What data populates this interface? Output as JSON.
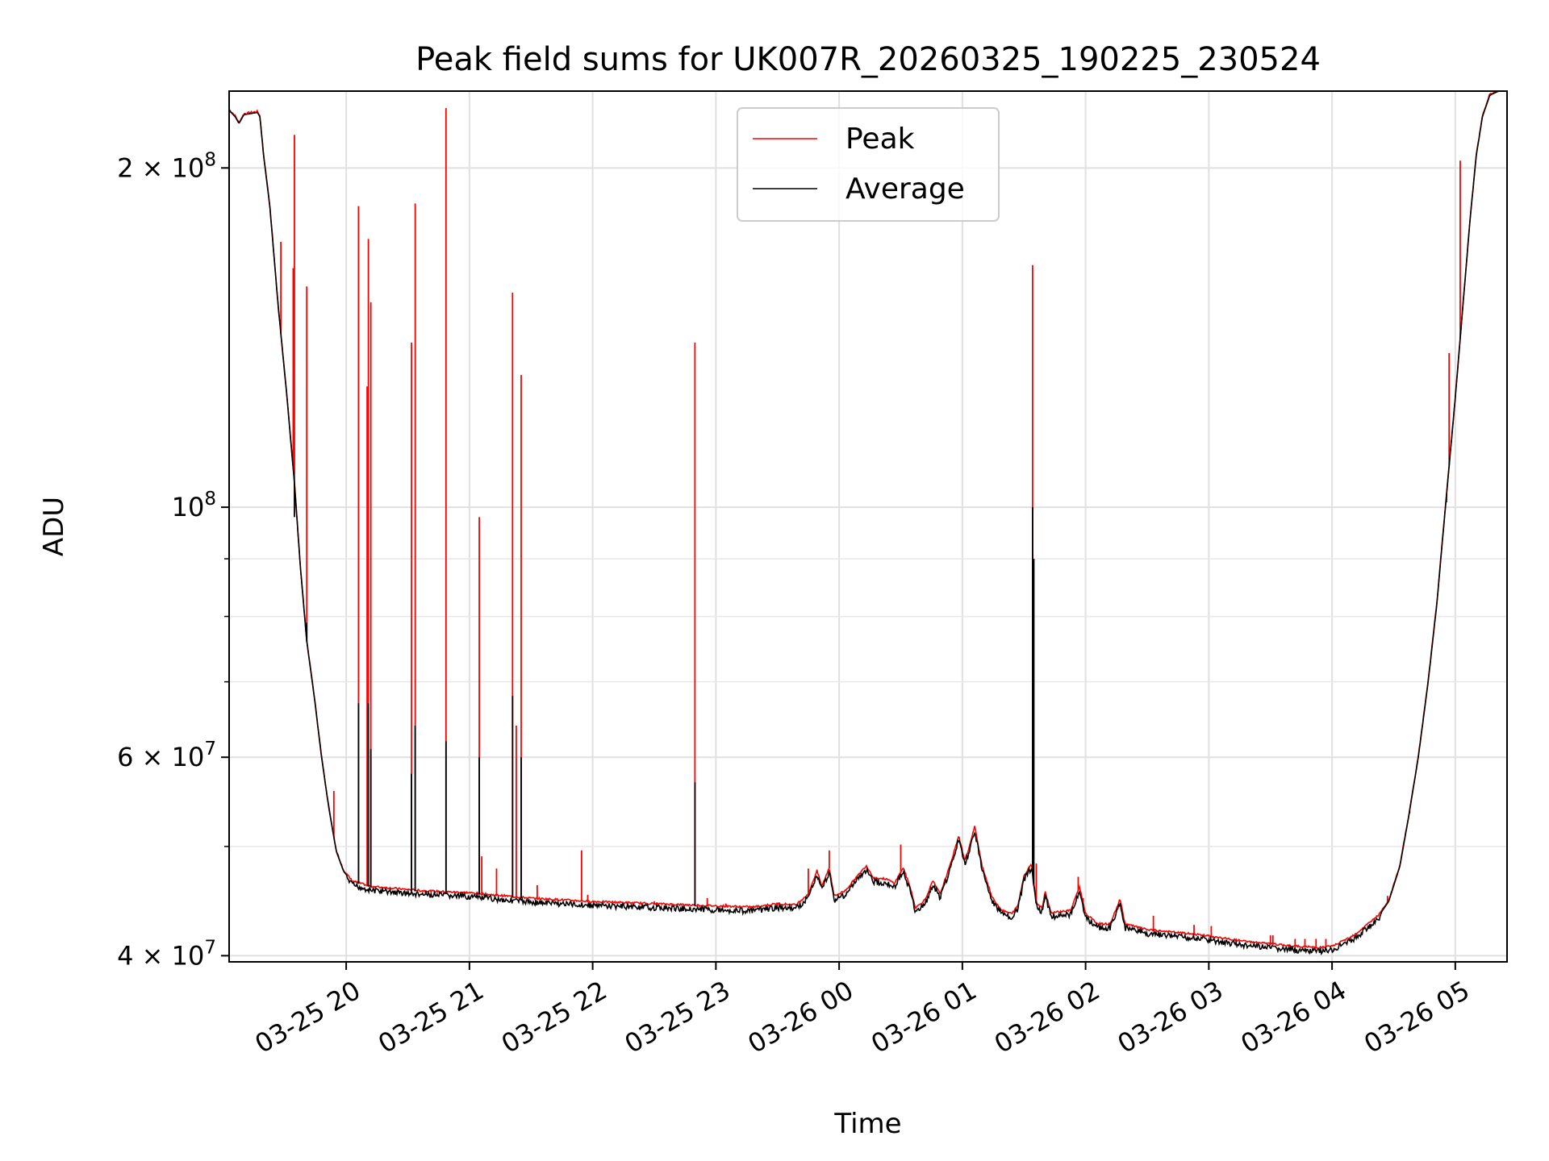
{
  "chart_data": {
    "type": "line",
    "title": "Peak field sums for UK007R_20260325_190225_230524",
    "xlabel": "Time",
    "ylabel": "ADU",
    "yscale": "log",
    "xlim_hours": [
      -0.95,
      9.42
    ],
    "ylim": [
      39500000,
      234000000
    ],
    "grid": true,
    "legend_position": "top-center",
    "x_ticks": [
      {
        "h": 0,
        "label": "03-25 20"
      },
      {
        "h": 1,
        "label": "03-25 21"
      },
      {
        "h": 2,
        "label": "03-25 22"
      },
      {
        "h": 3,
        "label": "03-25 23"
      },
      {
        "h": 4,
        "label": "03-26 00"
      },
      {
        "h": 5,
        "label": "03-26 01"
      },
      {
        "h": 6,
        "label": "03-26 02"
      },
      {
        "h": 7,
        "label": "03-26 03"
      },
      {
        "h": 8,
        "label": "03-26 04"
      },
      {
        "h": 9,
        "label": "03-26 05"
      }
    ],
    "y_ticks": [
      {
        "v": 40000000,
        "base": "4 × 10",
        "exp": "7",
        "show_coef": true
      },
      {
        "v": 60000000,
        "base": "6 × 10",
        "exp": "7",
        "show_coef": true
      },
      {
        "v": 100000000,
        "base": "10",
        "exp": "8",
        "show_coef": false
      },
      {
        "v": 200000000,
        "base": "2 × 10",
        "exp": "8",
        "show_coef": true
      }
    ],
    "y_minor_ticks": [
      50000000,
      70000000,
      80000000,
      90000000
    ],
    "series": [
      {
        "name": "Peak",
        "color": "#ff0000"
      },
      {
        "name": "Average",
        "color": "#000000"
      }
    ],
    "average_curve": [
      [
        -0.95,
        225000000
      ],
      [
        -0.9,
        222000000
      ],
      [
        -0.87,
        219000000
      ],
      [
        -0.83,
        223000000
      ],
      [
        -0.72,
        224000000
      ],
      [
        -0.7,
        222000000
      ],
      [
        -0.67,
        205000000
      ],
      [
        -0.62,
        185000000
      ],
      [
        -0.55,
        150000000
      ],
      [
        -0.48,
        125000000
      ],
      [
        -0.42,
        105000000
      ],
      [
        -0.37,
        88000000
      ],
      [
        -0.32,
        76000000
      ],
      [
        -0.26,
        68000000
      ],
      [
        -0.2,
        60000000
      ],
      [
        -0.14,
        54000000
      ],
      [
        -0.08,
        49500000
      ],
      [
        -0.02,
        47500000
      ],
      [
        0.05,
        46500000
      ],
      [
        0.2,
        46000000
      ],
      [
        0.4,
        45800000
      ],
      [
        0.6,
        45600000
      ],
      [
        1.0,
        45400000
      ],
      [
        1.5,
        44900000
      ],
      [
        2.0,
        44600000
      ],
      [
        2.5,
        44400000
      ],
      [
        3.0,
        44200000
      ],
      [
        3.3,
        44100000
      ],
      [
        3.5,
        44400000
      ],
      [
        3.65,
        44300000
      ],
      [
        3.75,
        45300000
      ],
      [
        3.82,
        47500000
      ],
      [
        3.86,
        46000000
      ],
      [
        3.92,
        47800000
      ],
      [
        3.96,
        45100000
      ],
      [
        4.05,
        45600000
      ],
      [
        4.15,
        47000000
      ],
      [
        4.22,
        48000000
      ],
      [
        4.28,
        46800000
      ],
      [
        4.38,
        46700000
      ],
      [
        4.45,
        46300000
      ],
      [
        4.52,
        47800000
      ],
      [
        4.58,
        45800000
      ],
      [
        4.62,
        44000000
      ],
      [
        4.7,
        44800000
      ],
      [
        4.76,
        46500000
      ],
      [
        4.82,
        45300000
      ],
      [
        4.9,
        48000000
      ],
      [
        4.97,
        51000000
      ],
      [
        5.02,
        48500000
      ],
      [
        5.06,
        50000000
      ],
      [
        5.1,
        52000000
      ],
      [
        5.16,
        48000000
      ],
      [
        5.24,
        45000000
      ],
      [
        5.32,
        43800000
      ],
      [
        5.4,
        43500000
      ],
      [
        5.45,
        44200000
      ],
      [
        5.5,
        47000000
      ],
      [
        5.56,
        48200000
      ],
      [
        5.6,
        44500000
      ],
      [
        5.65,
        44000000
      ],
      [
        5.67,
        45600000
      ],
      [
        5.72,
        43600000
      ],
      [
        5.8,
        43700000
      ],
      [
        5.88,
        43800000
      ],
      [
        5.95,
        46000000
      ],
      [
        6.0,
        43500000
      ],
      [
        6.1,
        42600000
      ],
      [
        6.2,
        42600000
      ],
      [
        6.28,
        44800000
      ],
      [
        6.32,
        42600000
      ],
      [
        6.5,
        42100000
      ],
      [
        6.7,
        41900000
      ],
      [
        6.9,
        41700000
      ],
      [
        7.1,
        41400000
      ],
      [
        7.3,
        41100000
      ],
      [
        7.5,
        40900000
      ],
      [
        7.7,
        40700000
      ],
      [
        7.9,
        40600000
      ],
      [
        8.0,
        40700000
      ],
      [
        8.1,
        41200000
      ],
      [
        8.2,
        41800000
      ],
      [
        8.3,
        42700000
      ],
      [
        8.38,
        43400000
      ],
      [
        8.46,
        44700000
      ],
      [
        8.55,
        48000000
      ],
      [
        8.62,
        53000000
      ],
      [
        8.7,
        60000000
      ],
      [
        8.78,
        70000000
      ],
      [
        8.85,
        82000000
      ],
      [
        8.92,
        100000000
      ],
      [
        9.0,
        125000000
      ],
      [
        9.06,
        150000000
      ],
      [
        9.12,
        180000000
      ],
      [
        9.17,
        205000000
      ],
      [
        9.22,
        222000000
      ],
      [
        9.28,
        232000000
      ],
      [
        9.35,
        234000000
      ],
      [
        9.42,
        234000000
      ]
    ],
    "peak_spikes": [
      {
        "h": -0.53,
        "v": 172000000
      },
      {
        "h": -0.42,
        "v": 214000000
      },
      {
        "h": -0.43,
        "v": 163000000
      },
      {
        "h": -0.32,
        "v": 157000000
      },
      {
        "h": -0.1,
        "v": 56000000
      },
      {
        "h": 0.1,
        "v": 185000000
      },
      {
        "h": 0.18,
        "v": 173000000
      },
      {
        "h": 0.2,
        "v": 152000000
      },
      {
        "h": 0.17,
        "v": 128000000
      },
      {
        "h": 0.53,
        "v": 140000000
      },
      {
        "h": 0.56,
        "v": 186000000
      },
      {
        "h": 0.81,
        "v": 226000000
      },
      {
        "h": 1.08,
        "v": 98000000
      },
      {
        "h": 1.1,
        "v": 49000000
      },
      {
        "h": 1.22,
        "v": 47800000
      },
      {
        "h": 1.35,
        "v": 155000000
      },
      {
        "h": 1.38,
        "v": 64000000
      },
      {
        "h": 1.42,
        "v": 131000000
      },
      {
        "h": 1.55,
        "v": 46200000
      },
      {
        "h": 1.91,
        "v": 49600000
      },
      {
        "h": 1.96,
        "v": 45300000
      },
      {
        "h": 2.5,
        "v": 44700000
      },
      {
        "h": 2.83,
        "v": 140000000
      },
      {
        "h": 2.93,
        "v": 45000000
      },
      {
        "h": 3.08,
        "v": 44500000
      },
      {
        "h": 3.75,
        "v": 47800000
      },
      {
        "h": 3.92,
        "v": 49600000
      },
      {
        "h": 4.5,
        "v": 50200000
      },
      {
        "h": 5.57,
        "v": 164000000
      },
      {
        "h": 5.6,
        "v": 48300000
      },
      {
        "h": 5.94,
        "v": 47000000
      },
      {
        "h": 5.98,
        "v": 45000000
      },
      {
        "h": 6.55,
        "v": 43400000
      },
      {
        "h": 6.88,
        "v": 42600000
      },
      {
        "h": 7.02,
        "v": 42500000
      },
      {
        "h": 7.5,
        "v": 41700000
      },
      {
        "h": 7.52,
        "v": 41700000
      },
      {
        "h": 7.7,
        "v": 41400000
      },
      {
        "h": 7.78,
        "v": 41400000
      },
      {
        "h": 7.87,
        "v": 41400000
      },
      {
        "h": 7.95,
        "v": 41400000
      },
      {
        "h": 8.45,
        "v": 45200000
      },
      {
        "h": 8.63,
        "v": 53500000
      },
      {
        "h": 8.93,
        "v": 101000000
      },
      {
        "h": 8.95,
        "v": 137000000
      },
      {
        "h": 9.04,
        "v": 203000000
      }
    ],
    "average_spikes": [
      {
        "h": -0.42,
        "v": 98000000
      },
      {
        "h": -0.32,
        "v": 79000000
      },
      {
        "h": 0.1,
        "v": 67000000
      },
      {
        "h": 0.18,
        "v": 67000000
      },
      {
        "h": 0.2,
        "v": 61000000
      },
      {
        "h": 0.53,
        "v": 58000000
      },
      {
        "h": 0.56,
        "v": 64000000
      },
      {
        "h": 0.81,
        "v": 62000000
      },
      {
        "h": 1.08,
        "v": 60000000
      },
      {
        "h": 1.35,
        "v": 68000000
      },
      {
        "h": 1.42,
        "v": 60000000
      },
      {
        "h": 2.83,
        "v": 57000000
      },
      {
        "h": 5.57,
        "v": 100000000
      },
      {
        "h": 5.58,
        "v": 90000000
      }
    ]
  }
}
